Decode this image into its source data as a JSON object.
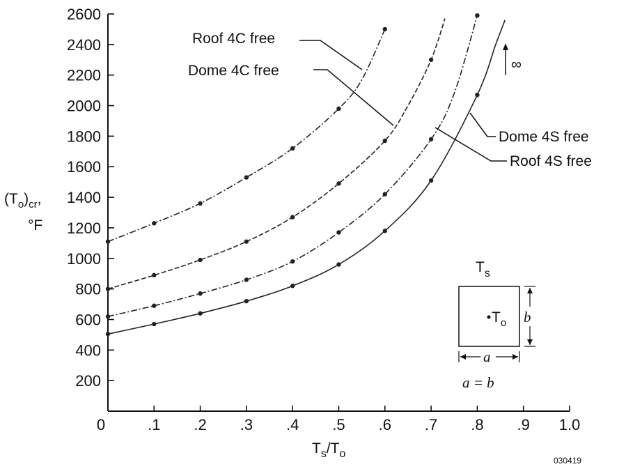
{
  "chart_data": {
    "type": "line",
    "xlabel": {
      "main": "T",
      "sub1": "s",
      "sep": "/T",
      "sub2": "o"
    },
    "ylabel": {
      "main": "(T",
      "sub": "o",
      "tail": ")",
      "sub2": "cr",
      "comma": ",",
      "unit": "°F"
    },
    "xlim": [
      0,
      1.0
    ],
    "ylim": [
      0,
      2600
    ],
    "x_ticks": [
      {
        "v": 0,
        "label": "0"
      },
      {
        "v": 0.1,
        "label": ".1"
      },
      {
        "v": 0.2,
        "label": ".2"
      },
      {
        "v": 0.3,
        "label": ".3"
      },
      {
        "v": 0.4,
        "label": ".4"
      },
      {
        "v": 0.5,
        "label": ".5"
      },
      {
        "v": 0.6,
        "label": ".6"
      },
      {
        "v": 0.7,
        "label": ".7"
      },
      {
        "v": 0.8,
        "label": ".8"
      },
      {
        "v": 0.9,
        "label": ".9"
      },
      {
        "v": 1.0,
        "label": "1.0"
      }
    ],
    "y_ticks": [
      {
        "v": 200,
        "label": "200"
      },
      {
        "v": 400,
        "label": "400"
      },
      {
        "v": 600,
        "label": "600"
      },
      {
        "v": 800,
        "label": "800"
      },
      {
        "v": 1000,
        "label": "1000"
      },
      {
        "v": 1200,
        "label": "1200"
      },
      {
        "v": 1400,
        "label": "1400"
      },
      {
        "v": 1600,
        "label": "1600"
      },
      {
        "v": 1800,
        "label": "1800"
      },
      {
        "v": 2000,
        "label": "2000"
      },
      {
        "v": 2200,
        "label": "2200"
      },
      {
        "v": 2400,
        "label": "2400"
      },
      {
        "v": 2600,
        "label": "2600"
      }
    ],
    "grid": false,
    "series": [
      {
        "name": "Roof 4C free",
        "style": "dashdot",
        "color": "#222222",
        "points": [
          [
            0,
            1110
          ],
          [
            0.1,
            1230
          ],
          [
            0.2,
            1360
          ],
          [
            0.3,
            1530
          ],
          [
            0.4,
            1720
          ],
          [
            0.5,
            1980
          ],
          [
            0.6,
            2500
          ]
        ],
        "curve": [
          [
            0,
            1110
          ],
          [
            0.1,
            1230
          ],
          [
            0.2,
            1360
          ],
          [
            0.3,
            1530
          ],
          [
            0.4,
            1720
          ],
          [
            0.5,
            1980
          ],
          [
            0.55,
            2170
          ],
          [
            0.6,
            2500
          ]
        ]
      },
      {
        "name": "Dome 4C free",
        "style": "dashed",
        "color": "#222222",
        "points": [
          [
            0,
            800
          ],
          [
            0.1,
            890
          ],
          [
            0.2,
            990
          ],
          [
            0.3,
            1110
          ],
          [
            0.4,
            1270
          ],
          [
            0.5,
            1490
          ],
          [
            0.6,
            1770
          ],
          [
            0.7,
            2300
          ]
        ],
        "curve": [
          [
            0,
            800
          ],
          [
            0.1,
            890
          ],
          [
            0.2,
            990
          ],
          [
            0.3,
            1110
          ],
          [
            0.4,
            1270
          ],
          [
            0.5,
            1490
          ],
          [
            0.6,
            1770
          ],
          [
            0.65,
            2000
          ],
          [
            0.7,
            2300
          ],
          [
            0.73,
            2570
          ]
        ]
      },
      {
        "name": "Dome 4S free",
        "style": "dashdot",
        "color": "#222222",
        "points": [
          [
            0,
            620
          ],
          [
            0.1,
            690
          ],
          [
            0.2,
            770
          ],
          [
            0.3,
            860
          ],
          [
            0.4,
            980
          ],
          [
            0.5,
            1170
          ],
          [
            0.6,
            1420
          ],
          [
            0.7,
            1780
          ],
          [
            0.8,
            2590
          ]
        ],
        "curve": [
          [
            0,
            620
          ],
          [
            0.1,
            690
          ],
          [
            0.2,
            770
          ],
          [
            0.3,
            860
          ],
          [
            0.4,
            980
          ],
          [
            0.5,
            1170
          ],
          [
            0.6,
            1420
          ],
          [
            0.7,
            1780
          ],
          [
            0.75,
            2080
          ],
          [
            0.8,
            2590
          ]
        ]
      },
      {
        "name": "Roof 4S free",
        "style": "solid",
        "color": "#222222",
        "points": [
          [
            0,
            505
          ],
          [
            0.1,
            570
          ],
          [
            0.2,
            640
          ],
          [
            0.3,
            720
          ],
          [
            0.4,
            820
          ],
          [
            0.5,
            960
          ],
          [
            0.6,
            1180
          ],
          [
            0.7,
            1510
          ],
          [
            0.8,
            2070
          ]
        ],
        "curve": [
          [
            0,
            505
          ],
          [
            0.1,
            570
          ],
          [
            0.2,
            640
          ],
          [
            0.3,
            720
          ],
          [
            0.4,
            820
          ],
          [
            0.5,
            960
          ],
          [
            0.6,
            1180
          ],
          [
            0.7,
            1510
          ],
          [
            0.8,
            2070
          ],
          [
            0.84,
            2400
          ],
          [
            0.86,
            2560
          ]
        ]
      }
    ],
    "annotations": {
      "infinity": "∞",
      "inset": {
        "top_label_main": "T",
        "top_label_sub": "s",
        "center_label_main": "T",
        "center_label_sub": "o",
        "a_label": "a",
        "b_label": "b",
        "equation": "a = b"
      },
      "figure_code": "030419"
    }
  }
}
